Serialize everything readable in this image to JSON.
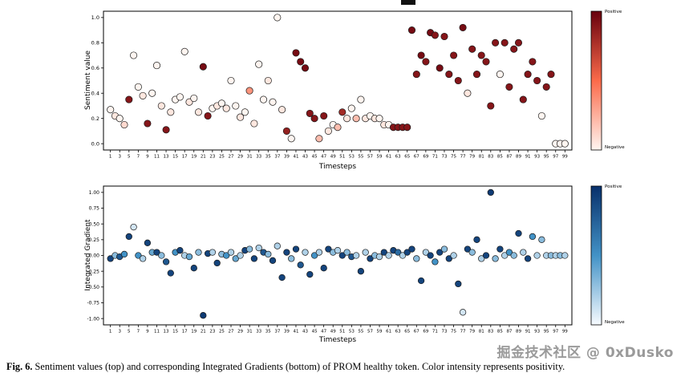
{
  "figure": {
    "caption_label": "Fig. 6.",
    "caption_text": "Sentiment values (top) and corresponding Integrated Gradients (bottom) of PROM healthy token. Color intensity represents positivity.",
    "watermark": "掘金技术社区 @ 0xDusko"
  },
  "chart_data": [
    {
      "type": "scatter",
      "title": "",
      "xlabel": "Timesteps",
      "ylabel": "Sentiment value",
      "xlim": [
        0,
        100
      ],
      "ylim": [
        0.0,
        1.0
      ],
      "grid": false,
      "xticks": [
        1,
        3,
        5,
        7,
        9,
        11,
        13,
        15,
        17,
        19,
        21,
        23,
        25,
        27,
        29,
        31,
        33,
        35,
        37,
        39,
        41,
        43,
        45,
        47,
        49,
        51,
        53,
        55,
        57,
        59,
        61,
        63,
        65,
        67,
        69,
        71,
        73,
        75,
        77,
        79,
        81,
        83,
        85,
        87,
        89,
        91,
        93,
        95,
        97,
        99
      ],
      "yticks": [
        0.0,
        0.2,
        0.4,
        0.6,
        0.8,
        1.0
      ],
      "ytick_labels": [
        "0.0",
        "0.2",
        "0.4",
        "0.6",
        "0.8",
        "1.0"
      ],
      "colormap": {
        "light": "#fff5f0",
        "mid": "#fb6a4a",
        "dark": "#67000d"
      },
      "colorbar": {
        "top_label": "Positive",
        "bottom_label": "Negative"
      },
      "points": [
        [
          1,
          0.27,
          0.0
        ],
        [
          2,
          0.22,
          0.05
        ],
        [
          3,
          0.2,
          0.0
        ],
        [
          4,
          0.15,
          0.1
        ],
        [
          5,
          0.35,
          0.9
        ],
        [
          6,
          0.7,
          0.0
        ],
        [
          7,
          0.45,
          0.0
        ],
        [
          8,
          0.38,
          0.05
        ],
        [
          9,
          0.16,
          0.9
        ],
        [
          10,
          0.4,
          0.0
        ],
        [
          11,
          0.62,
          0.0
        ],
        [
          12,
          0.3,
          0.05
        ],
        [
          13,
          0.11,
          0.9
        ],
        [
          14,
          0.25,
          0.05
        ],
        [
          15,
          0.35,
          0.0
        ],
        [
          16,
          0.37,
          0.0
        ],
        [
          17,
          0.73,
          0.0
        ],
        [
          18,
          0.33,
          0.05
        ],
        [
          19,
          0.36,
          0.0
        ],
        [
          20,
          0.25,
          0.05
        ],
        [
          21,
          0.61,
          0.95
        ],
        [
          22,
          0.22,
          0.9
        ],
        [
          23,
          0.28,
          0.0
        ],
        [
          24,
          0.3,
          0.05
        ],
        [
          25,
          0.32,
          0.0
        ],
        [
          26,
          0.28,
          0.05
        ],
        [
          27,
          0.5,
          0.0
        ],
        [
          28,
          0.3,
          0.0
        ],
        [
          29,
          0.21,
          0.05
        ],
        [
          30,
          0.25,
          0.0
        ],
        [
          31,
          0.42,
          0.35
        ],
        [
          32,
          0.16,
          0.05
        ],
        [
          33,
          0.63,
          0.0
        ],
        [
          34,
          0.35,
          0.0
        ],
        [
          35,
          0.5,
          0.05
        ],
        [
          36,
          0.33,
          0.0
        ],
        [
          37,
          1.0,
          0.0
        ],
        [
          38,
          0.27,
          0.05
        ],
        [
          39,
          0.1,
          0.85
        ],
        [
          40,
          0.04,
          0.0
        ],
        [
          41,
          0.72,
          0.95
        ],
        [
          42,
          0.65,
          0.95
        ],
        [
          43,
          0.6,
          0.95
        ],
        [
          44,
          0.24,
          0.9
        ],
        [
          45,
          0.2,
          0.9
        ],
        [
          46,
          0.04,
          0.2
        ],
        [
          47,
          0.22,
          0.9
        ],
        [
          48,
          0.1,
          0.05
        ],
        [
          49,
          0.15,
          0.0
        ],
        [
          50,
          0.13,
          0.2
        ],
        [
          51,
          0.25,
          0.8
        ],
        [
          52,
          0.2,
          0.05
        ],
        [
          53,
          0.28,
          0.0
        ],
        [
          54,
          0.2,
          0.2
        ],
        [
          55,
          0.35,
          0.0
        ],
        [
          56,
          0.2,
          0.05
        ],
        [
          57,
          0.22,
          0.0
        ],
        [
          58,
          0.2,
          0.05
        ],
        [
          59,
          0.2,
          0.0
        ],
        [
          60,
          0.15,
          0.05
        ],
        [
          61,
          0.15,
          0.0
        ],
        [
          62,
          0.13,
          0.9
        ],
        [
          63,
          0.13,
          0.9
        ],
        [
          64,
          0.13,
          0.9
        ],
        [
          65,
          0.13,
          0.9
        ],
        [
          66,
          0.9,
          0.95
        ],
        [
          67,
          0.55,
          0.9
        ],
        [
          68,
          0.7,
          0.95
        ],
        [
          69,
          0.65,
          0.9
        ],
        [
          70,
          0.88,
          0.95
        ],
        [
          71,
          0.86,
          0.9
        ],
        [
          72,
          0.6,
          0.95
        ],
        [
          73,
          0.85,
          0.9
        ],
        [
          74,
          0.55,
          0.9
        ],
        [
          75,
          0.7,
          0.9
        ],
        [
          76,
          0.5,
          0.9
        ],
        [
          77,
          0.92,
          0.95
        ],
        [
          78,
          0.4,
          0.05
        ],
        [
          79,
          0.75,
          0.9
        ],
        [
          80,
          0.55,
          0.9
        ],
        [
          81,
          0.7,
          0.9
        ],
        [
          82,
          0.65,
          0.9
        ],
        [
          83,
          0.3,
          0.9
        ],
        [
          84,
          0.8,
          0.9
        ],
        [
          85,
          0.55,
          0.0
        ],
        [
          86,
          0.8,
          0.9
        ],
        [
          87,
          0.45,
          0.9
        ],
        [
          88,
          0.75,
          0.9
        ],
        [
          89,
          0.8,
          0.9
        ],
        [
          90,
          0.35,
          0.9
        ],
        [
          91,
          0.55,
          0.9
        ],
        [
          92,
          0.65,
          0.9
        ],
        [
          93,
          0.5,
          0.9
        ],
        [
          94,
          0.22,
          0.0
        ],
        [
          95,
          0.45,
          0.9
        ],
        [
          96,
          0.55,
          0.9
        ],
        [
          97,
          0.0,
          0.0
        ],
        [
          98,
          0.0,
          0.0
        ],
        [
          99,
          0.0,
          0.0
        ]
      ]
    },
    {
      "type": "scatter",
      "title": "",
      "xlabel": "Timesteps",
      "ylabel": "Integrated Gradient",
      "xlim": [
        0,
        100
      ],
      "ylim": [
        -1.0,
        1.0
      ],
      "grid": false,
      "xticks": [
        1,
        3,
        5,
        7,
        9,
        11,
        13,
        15,
        17,
        19,
        21,
        23,
        25,
        27,
        29,
        31,
        33,
        35,
        37,
        39,
        41,
        43,
        45,
        47,
        49,
        51,
        53,
        55,
        57,
        59,
        61,
        63,
        65,
        67,
        69,
        71,
        73,
        75,
        77,
        79,
        81,
        83,
        85,
        87,
        89,
        91,
        93,
        95,
        97,
        99
      ],
      "yticks": [
        -1.0,
        -0.75,
        -0.5,
        -0.25,
        0.0,
        0.25,
        0.5,
        0.75,
        1.0
      ],
      "ytick_labels": [
        "-1.00",
        "-0.75",
        "-0.50",
        "-0.25",
        "0.00",
        "0.25",
        "0.50",
        "0.75",
        "1.00"
      ],
      "colormap": {
        "light": "#f7fbff",
        "mid": "#4292c6",
        "dark": "#08306b"
      },
      "colorbar": {
        "top_label": "Positive",
        "bottom_label": "Negative"
      },
      "points": [
        [
          1,
          -0.05,
          0.9
        ],
        [
          2,
          0.0,
          0.3
        ],
        [
          3,
          -0.02,
          0.8
        ],
        [
          4,
          0.02,
          0.5
        ],
        [
          5,
          0.3,
          0.9
        ],
        [
          6,
          0.45,
          0.1
        ],
        [
          7,
          0.0,
          0.5
        ],
        [
          8,
          -0.05,
          0.2
        ],
        [
          9,
          0.2,
          0.9
        ],
        [
          10,
          0.05,
          0.4
        ],
        [
          11,
          0.05,
          0.9
        ],
        [
          12,
          0.0,
          0.3
        ],
        [
          13,
          -0.1,
          0.8
        ],
        [
          14,
          -0.28,
          0.9
        ],
        [
          15,
          0.05,
          0.5
        ],
        [
          16,
          0.08,
          0.9
        ],
        [
          17,
          0.0,
          0.2
        ],
        [
          18,
          -0.02,
          0.4
        ],
        [
          19,
          -0.2,
          0.9
        ],
        [
          20,
          0.05,
          0.3
        ],
        [
          21,
          -0.95,
          0.95
        ],
        [
          22,
          0.03,
          0.9
        ],
        [
          23,
          0.05,
          0.2
        ],
        [
          24,
          -0.12,
          0.9
        ],
        [
          25,
          0.02,
          0.3
        ],
        [
          26,
          0.0,
          0.5
        ],
        [
          27,
          0.05,
          0.2
        ],
        [
          28,
          -0.05,
          0.4
        ],
        [
          29,
          0.0,
          0.2
        ],
        [
          30,
          0.08,
          0.9
        ],
        [
          31,
          0.1,
          0.3
        ],
        [
          32,
          -0.05,
          0.9
        ],
        [
          33,
          0.12,
          0.2
        ],
        [
          34,
          0.05,
          0.8
        ],
        [
          35,
          0.02,
          0.3
        ],
        [
          36,
          -0.08,
          0.9
        ],
        [
          37,
          0.15,
          0.2
        ],
        [
          38,
          -0.35,
          0.9
        ],
        [
          39,
          0.05,
          0.9
        ],
        [
          40,
          -0.05,
          0.3
        ],
        [
          41,
          0.1,
          0.9
        ],
        [
          42,
          -0.15,
          0.8
        ],
        [
          43,
          0.05,
          0.2
        ],
        [
          44,
          -0.3,
          0.9
        ],
        [
          45,
          0.0,
          0.5
        ],
        [
          46,
          0.05,
          0.2
        ],
        [
          47,
          -0.2,
          0.9
        ],
        [
          48,
          0.1,
          0.9
        ],
        [
          49,
          0.05,
          0.3
        ],
        [
          50,
          0.08,
          0.2
        ],
        [
          51,
          0.0,
          0.9
        ],
        [
          52,
          0.05,
          0.3
        ],
        [
          53,
          -0.02,
          0.8
        ],
        [
          54,
          0.0,
          0.2
        ],
        [
          55,
          -0.25,
          0.9
        ],
        [
          56,
          0.05,
          0.2
        ],
        [
          57,
          -0.05,
          0.9
        ],
        [
          58,
          0.0,
          0.3
        ],
        [
          59,
          -0.02,
          0.2
        ],
        [
          60,
          0.05,
          0.9
        ],
        [
          61,
          0.0,
          0.2
        ],
        [
          62,
          0.08,
          0.9
        ],
        [
          63,
          0.05,
          0.7
        ],
        [
          64,
          0.0,
          0.2
        ],
        [
          65,
          0.05,
          0.9
        ],
        [
          66,
          0.1,
          0.9
        ],
        [
          67,
          -0.05,
          0.3
        ],
        [
          68,
          -0.4,
          0.9
        ],
        [
          69,
          0.05,
          0.2
        ],
        [
          70,
          0.0,
          0.9
        ],
        [
          71,
          -0.1,
          0.5
        ],
        [
          72,
          0.05,
          0.9
        ],
        [
          73,
          0.1,
          0.3
        ],
        [
          74,
          -0.05,
          0.9
        ],
        [
          75,
          0.0,
          0.2
        ],
        [
          76,
          -0.45,
          0.9
        ],
        [
          77,
          -0.9,
          0.1
        ],
        [
          78,
          0.1,
          0.9
        ],
        [
          79,
          0.05,
          0.3
        ],
        [
          80,
          0.25,
          0.9
        ],
        [
          81,
          -0.05,
          0.2
        ],
        [
          82,
          0.0,
          0.9
        ],
        [
          83,
          1.0,
          0.95
        ],
        [
          84,
          -0.05,
          0.3
        ],
        [
          85,
          0.1,
          0.9
        ],
        [
          86,
          0.0,
          0.2
        ],
        [
          87,
          0.05,
          0.5
        ],
        [
          88,
          0.0,
          0.3
        ],
        [
          89,
          0.35,
          0.9
        ],
        [
          90,
          0.05,
          0.2
        ],
        [
          91,
          -0.05,
          0.9
        ],
        [
          92,
          0.3,
          0.5
        ],
        [
          93,
          0.0,
          0.2
        ],
        [
          94,
          0.25,
          0.3
        ],
        [
          95,
          0.0,
          0.2
        ],
        [
          96,
          0.0,
          0.3
        ],
        [
          97,
          0.0,
          0.2
        ],
        [
          98,
          0.0,
          0.3
        ],
        [
          99,
          0.0,
          0.2
        ]
      ]
    }
  ]
}
